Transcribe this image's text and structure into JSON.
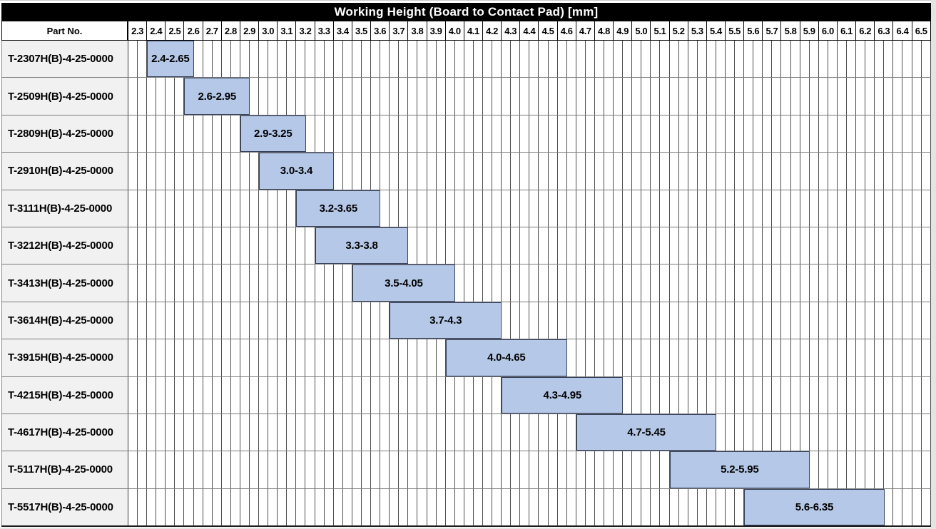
{
  "colors": {
    "title_bg": "#000000",
    "title_text": "#ffffff",
    "bar_fill": "#b5c8e8",
    "bar_border": "#35415c",
    "part_cell_bg": "#f1f1f1",
    "grid_vertical_line": "#4d4d4d",
    "row_separator": "#7a7a7a",
    "header_border": "#000000",
    "page_margin_bg": "#e4e4e4"
  },
  "chart_data": {
    "type": "bar",
    "variant": "horizontal-range-gantt",
    "title": "Working Height (Board to Contact Pad) [mm]",
    "part_no_header": "Part No.",
    "axis": {
      "min": 2.3,
      "max": 6.6,
      "tick_step": 0.1,
      "minor_step": 0.05,
      "grid": true
    },
    "tick_labels": [
      "2.3",
      "2.4",
      "2.5",
      "2.6",
      "2.7",
      "2.8",
      "2.9",
      "3.0",
      "3.1",
      "3.2",
      "3.3",
      "3.4",
      "3.5",
      "3.6",
      "3.7",
      "3.8",
      "3.9",
      "4.0",
      "4.1",
      "4.2",
      "4.3",
      "4.4",
      "4.5",
      "4.6",
      "4.7",
      "4.8",
      "4.9",
      "5.0",
      "5.1",
      "5.2",
      "5.3",
      "5.4",
      "5.5",
      "5.6",
      "5.7",
      "5.8",
      "5.9",
      "6.0",
      "6.1",
      "6.2",
      "6.3",
      "6.4",
      "6.5"
    ],
    "rows": [
      {
        "part_no": "T-2307H(B)-4-25-0000",
        "start": 2.4,
        "end": 2.65,
        "label": "2.4-2.65"
      },
      {
        "part_no": "T-2509H(B)-4-25-0000",
        "start": 2.6,
        "end": 2.95,
        "label": "2.6-2.95"
      },
      {
        "part_no": "T-2809H(B)-4-25-0000",
        "start": 2.9,
        "end": 3.25,
        "label": "2.9-3.25"
      },
      {
        "part_no": "T-2910H(B)-4-25-0000",
        "start": 3.0,
        "end": 3.4,
        "label": "3.0-3.4"
      },
      {
        "part_no": "T-3111H(B)-4-25-0000",
        "start": 3.2,
        "end": 3.65,
        "label": "3.2-3.65"
      },
      {
        "part_no": "T-3212H(B)-4-25-0000",
        "start": 3.3,
        "end": 3.8,
        "label": "3.3-3.8"
      },
      {
        "part_no": "T-3413H(B)-4-25-0000",
        "start": 3.5,
        "end": 4.05,
        "label": "3.5-4.05"
      },
      {
        "part_no": "T-3614H(B)-4-25-0000",
        "start": 3.7,
        "end": 4.3,
        "label": "3.7-4.3"
      },
      {
        "part_no": "T-3915H(B)-4-25-0000",
        "start": 4.0,
        "end": 4.65,
        "label": "4.0-4.65"
      },
      {
        "part_no": "T-4215H(B)-4-25-0000",
        "start": 4.3,
        "end": 4.95,
        "label": "4.3-4.95"
      },
      {
        "part_no": "T-4617H(B)-4-25-0000",
        "start": 4.7,
        "end": 5.45,
        "label": "4.7-5.45"
      },
      {
        "part_no": "T-5117H(B)-4-25-0000",
        "start": 5.2,
        "end": 5.95,
        "label": "5.2-5.95"
      },
      {
        "part_no": "T-5517H(B)-4-25-0000",
        "start": 5.6,
        "end": 6.35,
        "label": "5.6-6.35"
      }
    ]
  }
}
